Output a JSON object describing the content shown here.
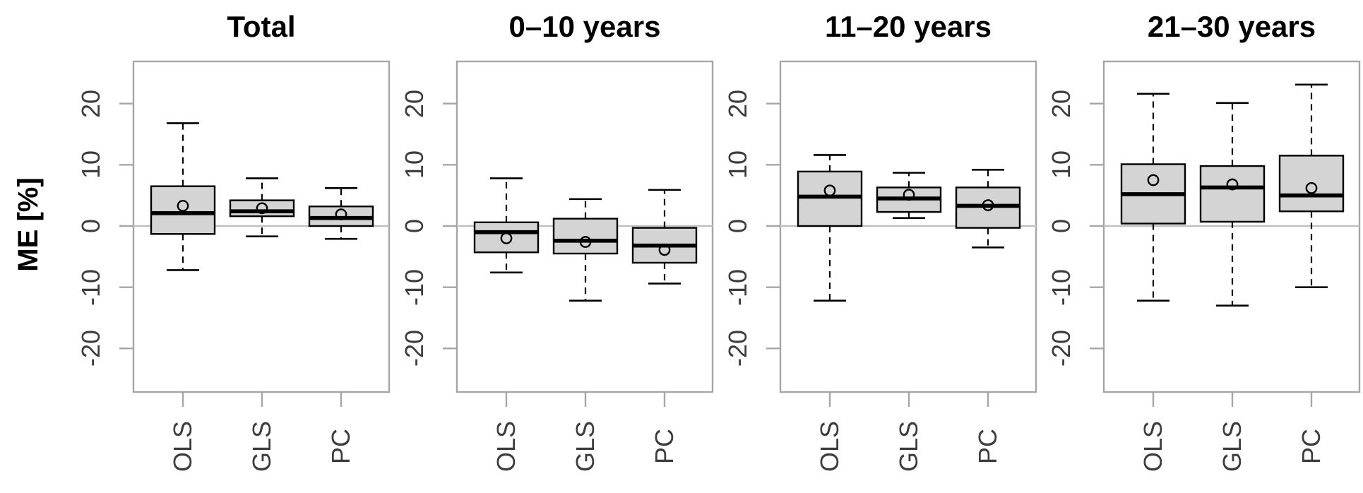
{
  "figure": {
    "ylabel": "ME [%]",
    "y_tick_labels": [
      "20",
      "10",
      "0",
      "-10",
      "-20"
    ],
    "categories": [
      "OLS",
      "GLS",
      "PC"
    ],
    "colors": {
      "box_fill": "#d4d4d4",
      "box_border": "#000000",
      "median": "#000000",
      "whisker": "#000000",
      "frame": "#a6a6a6",
      "zero_line": "#c0c0c0",
      "tick": "#a6a6a6",
      "tick_label": "#3d3d3d",
      "title": "#000000"
    }
  },
  "chart_data": {
    "type": "boxplot",
    "ylabel": "ME [%]",
    "ylim": [
      -27,
      27
    ],
    "y_ticks": [
      20,
      10,
      0,
      -10,
      -20
    ],
    "grid": "zero-line-only",
    "categories": [
      "OLS",
      "GLS",
      "PC"
    ],
    "panels": [
      {
        "title": "Total",
        "boxes": [
          {
            "method": "OLS",
            "whisker_low": -7.2,
            "q1": -1.3,
            "median": 2.1,
            "mean": 3.3,
            "q3": 6.5,
            "whisker_high": 16.8
          },
          {
            "method": "GLS",
            "whisker_low": -1.7,
            "q1": 1.6,
            "median": 2.4,
            "mean": 2.9,
            "q3": 4.2,
            "whisker_high": 7.8
          },
          {
            "method": "PC",
            "whisker_low": -2.1,
            "q1": 0.0,
            "median": 1.3,
            "mean": 1.9,
            "q3": 3.2,
            "whisker_high": 6.2
          }
        ]
      },
      {
        "title": "0–10 years",
        "boxes": [
          {
            "method": "OLS",
            "whisker_low": -7.6,
            "q1": -4.3,
            "median": -1.0,
            "mean": -2.0,
            "q3": 0.6,
            "whisker_high": 7.8
          },
          {
            "method": "GLS",
            "whisker_low": -12.2,
            "q1": -4.5,
            "median": -2.4,
            "mean": -2.6,
            "q3": 1.2,
            "whisker_high": 4.4
          },
          {
            "method": "PC",
            "whisker_low": -9.4,
            "q1": -6.0,
            "median": -3.2,
            "mean": -3.9,
            "q3": -0.3,
            "whisker_high": 5.9
          }
        ]
      },
      {
        "title": "11–20 years",
        "boxes": [
          {
            "method": "OLS",
            "whisker_low": -12.2,
            "q1": 0.0,
            "median": 4.8,
            "mean": 5.8,
            "q3": 8.9,
            "whisker_high": 11.6
          },
          {
            "method": "GLS",
            "whisker_low": 1.3,
            "q1": 2.3,
            "median": 4.5,
            "mean": 5.1,
            "q3": 6.3,
            "whisker_high": 8.7
          },
          {
            "method": "PC",
            "whisker_low": -3.5,
            "q1": -0.3,
            "median": 3.3,
            "mean": 3.4,
            "q3": 6.3,
            "whisker_high": 9.2
          }
        ]
      },
      {
        "title": "21–30 years",
        "boxes": [
          {
            "method": "OLS",
            "whisker_low": -12.2,
            "q1": 0.4,
            "median": 5.2,
            "mean": 7.5,
            "q3": 10.1,
            "whisker_high": 21.6
          },
          {
            "method": "GLS",
            "whisker_low": -13.0,
            "q1": 0.7,
            "median": 6.3,
            "mean": 6.8,
            "q3": 9.8,
            "whisker_high": 20.1
          },
          {
            "method": "PC",
            "whisker_low": -10.0,
            "q1": 2.4,
            "median": 5.0,
            "mean": 6.2,
            "q3": 11.5,
            "whisker_high": 23.1
          }
        ]
      }
    ]
  }
}
